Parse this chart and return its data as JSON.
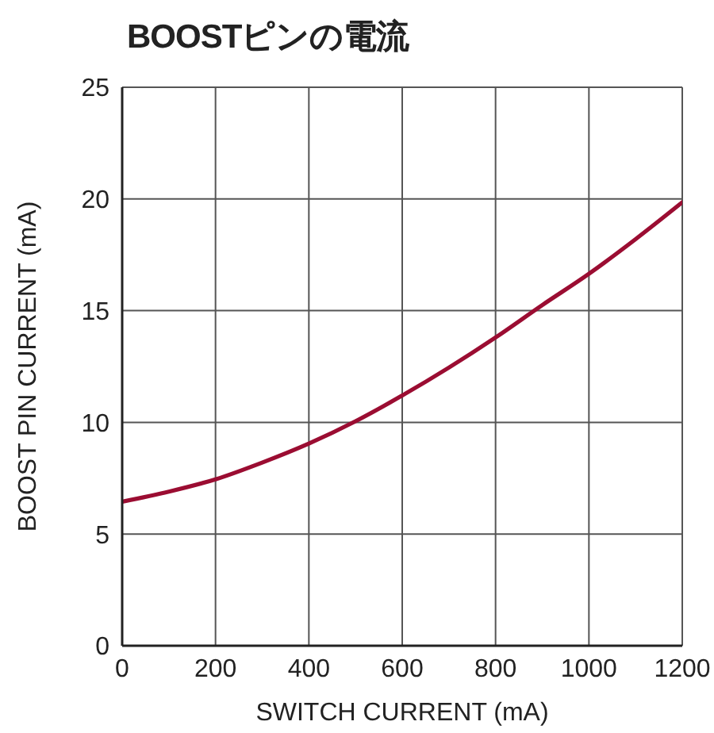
{
  "chart_data": {
    "type": "line",
    "title": "BOOSTピンの電流",
    "xlabel": "SWITCH CURRENT (mA)",
    "ylabel": "BOOST PIN CURRENT (mA)",
    "x": [
      0,
      100,
      200,
      300,
      400,
      500,
      600,
      700,
      800,
      900,
      1000,
      1100,
      1200
    ],
    "values": [
      6.45,
      6.9,
      7.45,
      8.2,
      9.05,
      10.05,
      11.2,
      12.45,
      13.8,
      15.25,
      16.65,
      18.2,
      19.85
    ],
    "color": "#9b0d32",
    "xlim": [
      0,
      1200
    ],
    "xticks": [
      0,
      200,
      400,
      600,
      800,
      1000,
      1200
    ],
    "ylim": [
      0,
      25
    ],
    "yticks": [
      0,
      5,
      10,
      15,
      20,
      25
    ],
    "grid": true,
    "marker": "none",
    "line_style": "solid"
  }
}
